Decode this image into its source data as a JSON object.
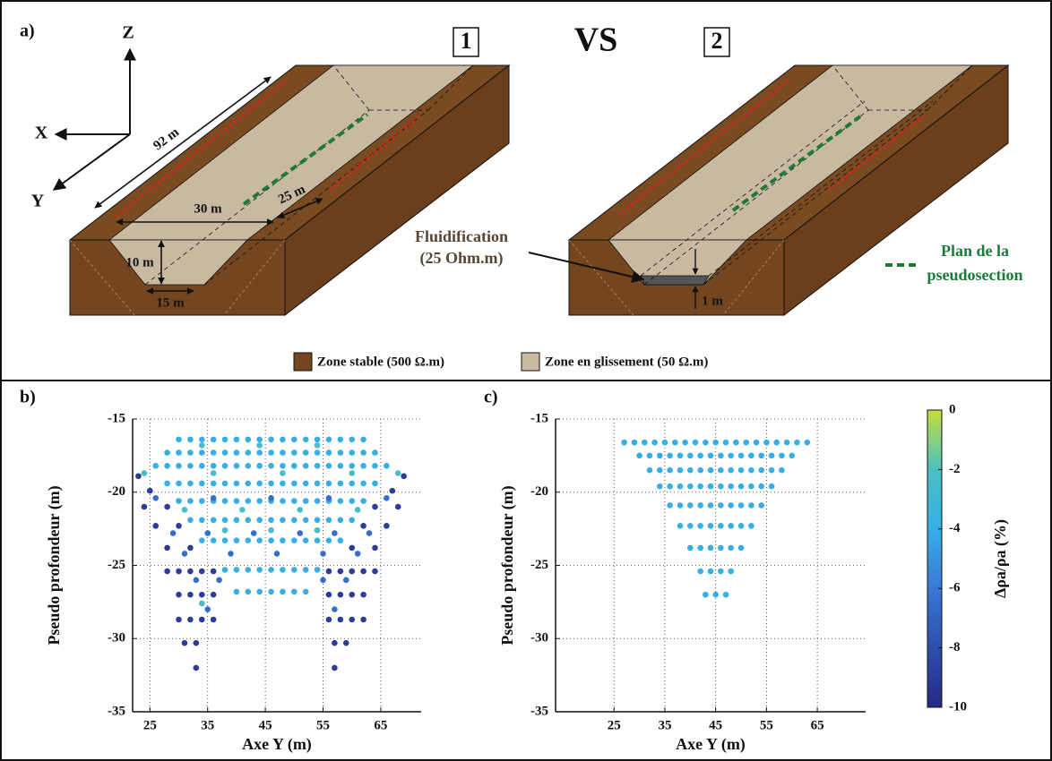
{
  "diagram": {
    "panel_label": "a)",
    "axis_z": "Z",
    "axis_x": "X",
    "axis_y": "Y",
    "box_1": "1",
    "vs": "VS",
    "box_2": "2",
    "dim_length": "92 m",
    "dim_width": "30 m",
    "dim_offset": "25 m",
    "dim_depth": "10 m",
    "dim_bottom": "15 m",
    "fluid_title": "Fluidification",
    "fluid_res": "(25 Ohm.m)",
    "fluid_thickness": "1 m",
    "plane_1": "Plan de la",
    "plane_2": "pseudosection",
    "legend_stable": "Zone stable (500 Ω.m)",
    "legend_sliding": "Zone en glissement (50 Ω.m)"
  },
  "colorbar": {
    "label": "Δρa/ρa (%)",
    "lim": [
      -10,
      0
    ],
    "ticks": [
      0,
      -2,
      -4,
      -6,
      -8,
      -10
    ],
    "colormap": [
      "#262a82",
      "#2e4fae",
      "#3a78d4",
      "#38aee6",
      "#4cc0c0",
      "#c6de3c"
    ]
  },
  "chart_data": [
    {
      "type": "scatter",
      "panel_label": "b)",
      "xlabel": "Axe Y (m)",
      "ylabel": "Pseudo profondeur (m)",
      "xlim": [
        22,
        72
      ],
      "ylim": [
        -35,
        -15
      ],
      "xticks": [
        25,
        35,
        45,
        55,
        65
      ],
      "yticks": [
        -35,
        -30,
        -25,
        -20,
        -15
      ],
      "grid": true,
      "series": [
        {
          "value": -4,
          "x": [
            30,
            32,
            34,
            36,
            38,
            40,
            42,
            44,
            46,
            48,
            50,
            52,
            54,
            56,
            58,
            60,
            62,
            28,
            30,
            32,
            34,
            36,
            38,
            40,
            42,
            44,
            46,
            48,
            50,
            52,
            54,
            56,
            58,
            60,
            62,
            64,
            26,
            28,
            30,
            32,
            34,
            36,
            38,
            40,
            42,
            44,
            46,
            48,
            50,
            52,
            54,
            56,
            58,
            60,
            62,
            64,
            66,
            28,
            30,
            32,
            34,
            36,
            38,
            40,
            42,
            44,
            46,
            48,
            50,
            52,
            54,
            56,
            58,
            60,
            62,
            64,
            30,
            32,
            34,
            36,
            38,
            40,
            42,
            44,
            46,
            48,
            50,
            52,
            54,
            56,
            58,
            60,
            62,
            32,
            34,
            36,
            38,
            40,
            42,
            44,
            46,
            48,
            50,
            52,
            54,
            56,
            58,
            60,
            34,
            36,
            38,
            40,
            42,
            44,
            46,
            48,
            50,
            52,
            54,
            56,
            58,
            38,
            40,
            42,
            44,
            46,
            48,
            50,
            52,
            54,
            40,
            42,
            44,
            46,
            48,
            50,
            52
          ],
          "y": [
            -16.4,
            -16.4,
            -16.4,
            -16.4,
            -16.4,
            -16.4,
            -16.4,
            -16.4,
            -16.4,
            -16.4,
            -16.4,
            -16.4,
            -16.4,
            -16.4,
            -16.4,
            -16.4,
            -16.4,
            -17.3,
            -17.3,
            -17.3,
            -17.3,
            -17.3,
            -17.3,
            -17.3,
            -17.3,
            -17.3,
            -17.3,
            -17.3,
            -17.3,
            -17.3,
            -17.3,
            -17.3,
            -17.3,
            -17.3,
            -17.3,
            -17.3,
            -18.2,
            -18.2,
            -18.2,
            -18.2,
            -18.2,
            -18.2,
            -18.2,
            -18.2,
            -18.2,
            -18.2,
            -18.2,
            -18.2,
            -18.2,
            -18.2,
            -18.2,
            -18.2,
            -18.2,
            -18.2,
            -18.2,
            -18.2,
            -18.2,
            -19.4,
            -19.4,
            -19.4,
            -19.4,
            -19.4,
            -19.4,
            -19.4,
            -19.4,
            -19.4,
            -19.4,
            -19.4,
            -19.4,
            -19.4,
            -19.4,
            -19.4,
            -19.4,
            -19.4,
            -19.4,
            -19.4,
            -20.6,
            -20.6,
            -20.6,
            -20.6,
            -20.6,
            -20.6,
            -20.6,
            -20.6,
            -20.6,
            -20.6,
            -20.6,
            -20.6,
            -20.6,
            -20.6,
            -20.6,
            -20.6,
            -20.6,
            -21.9,
            -21.9,
            -21.9,
            -21.9,
            -21.9,
            -21.9,
            -21.9,
            -21.9,
            -21.9,
            -21.9,
            -21.9,
            -21.9,
            -21.9,
            -21.9,
            -21.9,
            -23.3,
            -23.3,
            -23.3,
            -23.3,
            -23.3,
            -23.3,
            -23.3,
            -23.3,
            -23.3,
            -23.3,
            -23.3,
            -23.3,
            -23.3,
            -25.3,
            -25.3,
            -25.3,
            -25.3,
            -25.3,
            -25.3,
            -25.3,
            -25.3,
            -25.3,
            -26.8,
            -26.8,
            -26.8,
            -26.8,
            -26.8,
            -26.8,
            -26.8
          ]
        },
        {
          "value": -9,
          "x": [
            23,
            69,
            25,
            67,
            24,
            28,
            64,
            68,
            26,
            30,
            62,
            66,
            28,
            32,
            60,
            64,
            28,
            30,
            32,
            34,
            36,
            56,
            58,
            60,
            62,
            64,
            30,
            32,
            34,
            36,
            56,
            58,
            60,
            62,
            30,
            32,
            34,
            36,
            56,
            58,
            60,
            62,
            31,
            33,
            57,
            59,
            33,
            57
          ],
          "y": [
            -18.9,
            -18.9,
            -19.9,
            -19.9,
            -21,
            -21,
            -21,
            -21,
            -22.3,
            -22.3,
            -22.3,
            -22.3,
            -23.8,
            -23.8,
            -23.8,
            -23.8,
            -25.4,
            -25.4,
            -25.4,
            -25.4,
            -25.4,
            -25.4,
            -25.4,
            -25.4,
            -25.4,
            -25.4,
            -27,
            -27,
            -27,
            -27,
            -27,
            -27,
            -27,
            -27,
            -28.7,
            -28.7,
            -28.7,
            -28.7,
            -28.7,
            -28.7,
            -28.7,
            -28.7,
            -30.3,
            -30.3,
            -30.3,
            -30.3,
            -32,
            -32
          ]
        },
        {
          "value": -6.5,
          "x": [
            26,
            36,
            46,
            56,
            66,
            29,
            35,
            43,
            51,
            57,
            63,
            31,
            39,
            47,
            55,
            61,
            33,
            37,
            55,
            59,
            35,
            57
          ],
          "y": [
            -20.4,
            -20.4,
            -20.4,
            -20.4,
            -20.4,
            -22.8,
            -22.8,
            -22.8,
            -22.8,
            -22.8,
            -22.8,
            -24.2,
            -24.2,
            -24.2,
            -24.2,
            -24.2,
            -26,
            -26,
            -26,
            -26,
            -28,
            -28
          ]
        },
        {
          "value": -2.5,
          "x": [
            34,
            44,
            54,
            24,
            36,
            48,
            60,
            68,
            31,
            41,
            51,
            61,
            38,
            46,
            54,
            34
          ],
          "y": [
            -16.8,
            -16.8,
            -16.8,
            -18.7,
            -18.7,
            -18.7,
            -18.7,
            -18.7,
            -21.2,
            -21.2,
            -21.2,
            -21.2,
            -22.6,
            -22.6,
            -22.6,
            -27.6
          ]
        }
      ]
    },
    {
      "type": "scatter",
      "panel_label": "c)",
      "xlabel": "Axe Y (m)",
      "ylabel": "Pseudo profondeur (m)",
      "xlim": [
        13.5,
        74.5
      ],
      "ylim": [
        -35,
        -15
      ],
      "xticks": [
        25,
        35,
        45,
        55,
        65
      ],
      "yticks": [
        -35,
        -30,
        -25,
        -20,
        -15
      ],
      "grid": true,
      "series": [
        {
          "value": -4,
          "x": [
            27,
            29,
            31,
            33,
            35,
            37,
            39,
            41,
            43,
            45,
            47,
            49,
            51,
            53,
            55,
            57,
            59,
            61,
            63,
            30,
            32,
            34,
            36,
            38,
            40,
            42,
            44,
            46,
            48,
            50,
            52,
            54,
            56,
            58,
            60,
            32,
            34,
            36,
            38,
            40,
            42,
            44,
            46,
            48,
            50,
            52,
            54,
            56,
            58,
            34,
            36,
            38,
            40,
            42,
            44,
            46,
            48,
            50,
            52,
            54,
            56,
            36,
            38,
            40,
            42,
            44,
            46,
            48,
            50,
            52,
            54,
            38,
            40,
            42,
            44,
            46,
            48,
            50,
            52,
            40,
            42,
            44,
            46,
            48,
            50,
            42,
            44,
            46,
            48,
            43,
            45,
            47
          ],
          "y": [
            -16.6,
            -16.6,
            -16.6,
            -16.6,
            -16.6,
            -16.6,
            -16.6,
            -16.6,
            -16.6,
            -16.6,
            -16.6,
            -16.6,
            -16.6,
            -16.6,
            -16.6,
            -16.6,
            -16.6,
            -16.6,
            -16.6,
            -17.5,
            -17.5,
            -17.5,
            -17.5,
            -17.5,
            -17.5,
            -17.5,
            -17.5,
            -17.5,
            -17.5,
            -17.5,
            -17.5,
            -17.5,
            -17.5,
            -17.5,
            -17.5,
            -18.5,
            -18.5,
            -18.5,
            -18.5,
            -18.5,
            -18.5,
            -18.5,
            -18.5,
            -18.5,
            -18.5,
            -18.5,
            -18.5,
            -18.5,
            -18.5,
            -19.6,
            -19.6,
            -19.6,
            -19.6,
            -19.6,
            -19.6,
            -19.6,
            -19.6,
            -19.6,
            -19.6,
            -19.6,
            -19.6,
            -20.9,
            -20.9,
            -20.9,
            -20.9,
            -20.9,
            -20.9,
            -20.9,
            -20.9,
            -20.9,
            -20.9,
            -22.3,
            -22.3,
            -22.3,
            -22.3,
            -22.3,
            -22.3,
            -22.3,
            -22.3,
            -23.8,
            -23.8,
            -23.8,
            -23.8,
            -23.8,
            -23.8,
            -25.4,
            -25.4,
            -25.4,
            -25.4,
            -27,
            -27,
            -27
          ]
        }
      ]
    }
  ]
}
